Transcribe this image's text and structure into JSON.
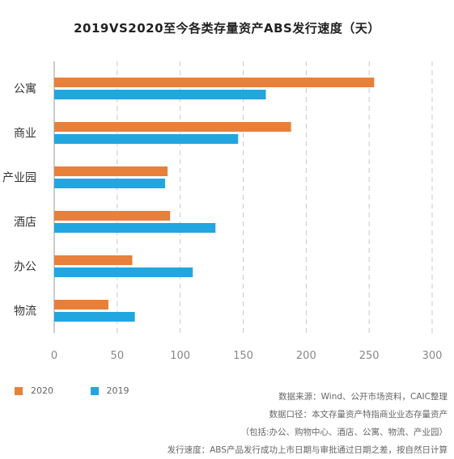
{
  "chart_data": {
    "type": "bar",
    "orientation": "horizontal",
    "title": "2019VS2020至今各类存量资产ABS发行速度（天）",
    "categories": [
      "公寓",
      "商业",
      "产业园",
      "酒店",
      "办公",
      "物流"
    ],
    "series": [
      {
        "name": "2020",
        "color": "#E8803A",
        "values": [
          254,
          188,
          90,
          92,
          62,
          43
        ]
      },
      {
        "name": "2019",
        "color": "#22A6E0",
        "values": [
          168,
          146,
          88,
          128,
          110,
          64
        ]
      }
    ],
    "xlim": [
      0,
      300
    ],
    "xticks": [
      "0",
      "50",
      "100",
      "150",
      "200",
      "250",
      "300"
    ],
    "grid": "vertical-dashed",
    "legend_position": "bottom-left"
  },
  "notes": [
    "数据来源：Wind、公开市场资料，CAIC整理",
    "数据口径：本文存量资产特指商业业态存量资产",
    "（包括:办公、购物中心、酒店、公寓、物流、产业园）",
    "发行速度：ABS产品发行成功上市日期与审批通过日期之差，按自然日计算"
  ]
}
